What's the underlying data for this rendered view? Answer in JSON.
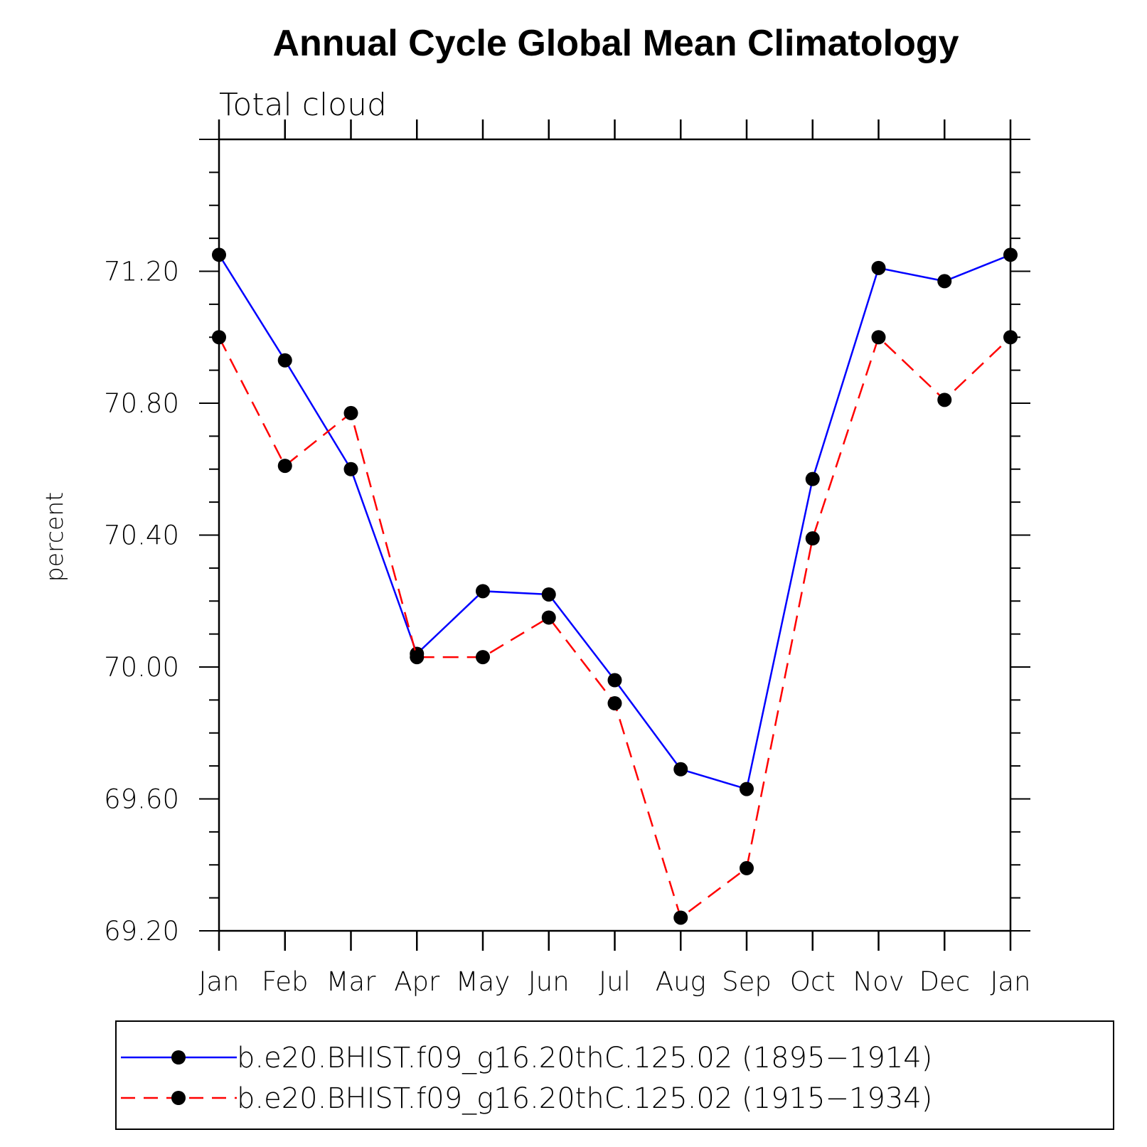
{
  "chart_data": {
    "type": "line",
    "title": "Annual Cycle Global Mean Climatology",
    "subtitle": "Total cloud",
    "xlabel": "",
    "ylabel": "percent",
    "categories": [
      "Jan",
      "Feb",
      "Mar",
      "Apr",
      "May",
      "Jun",
      "Jul",
      "Aug",
      "Sep",
      "Oct",
      "Nov",
      "Dec",
      "Jan"
    ],
    "ylim": [
      69.2,
      71.6
    ],
    "yticks": [
      "69.20",
      "69.60",
      "70.00",
      "70.40",
      "70.80",
      "71.20"
    ],
    "grid": false,
    "legend_position": "bottom",
    "series": [
      {
        "name": "b.e20.BHIST.f09_g16.20thC.125.02 (1895−1914)",
        "color": "#0000ff",
        "line_style": "solid",
        "marker": "filled-circle",
        "values": [
          71.25,
          70.93,
          70.6,
          70.04,
          70.23,
          70.22,
          69.96,
          69.69,
          69.63,
          70.57,
          71.21,
          71.17,
          71.25
        ]
      },
      {
        "name": "b.e20.BHIST.f09_g16.20thC.125.02 (1915−1934)",
        "color": "#ff0000",
        "line_style": "dashed",
        "marker": "filled-circle",
        "values": [
          71.0,
          70.61,
          70.77,
          70.03,
          70.03,
          70.15,
          69.89,
          69.24,
          69.39,
          70.39,
          71.0,
          70.81,
          71.0
        ]
      }
    ]
  }
}
